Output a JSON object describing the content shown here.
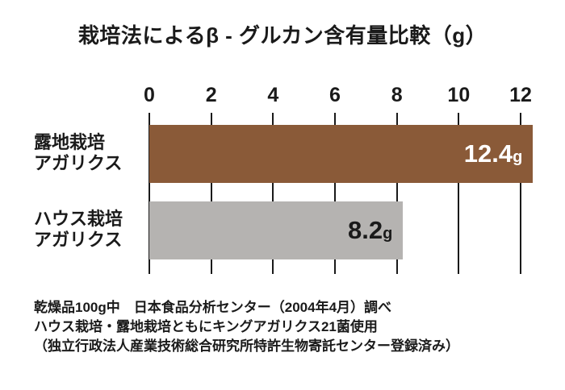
{
  "chart_data": {
    "type": "bar",
    "orientation": "horizontal",
    "title": "栽培法によるβ - グルカン含有量比較（g）",
    "categories": [
      [
        "露地栽培",
        "アガリクス"
      ],
      [
        "ハウス栽培",
        "アガリクス"
      ]
    ],
    "values": [
      12.4,
      8.2
    ],
    "value_labels": [
      "12.4",
      "8.2"
    ],
    "unit": "g",
    "bar_colors": [
      "#8a5a38",
      "#b5b3b1"
    ],
    "value_label_colors": [
      "#ffffff",
      "#1a1a1a"
    ],
    "x_ticks": [
      0,
      2,
      4,
      6,
      8,
      10,
      12
    ],
    "xlim": [
      0,
      12
    ],
    "grid": true,
    "gridline_color": "#1a1a1a",
    "legend": "none"
  },
  "footnotes": [
    "乾燥品100g中　日本食品分析センター（2004年4月）調べ",
    "ハウス栽培・露地栽培ともにキングアガリクス21菌使用",
    "（独立行政法人産業技術総合研究所特許生物寄託センター登録済み）"
  ]
}
